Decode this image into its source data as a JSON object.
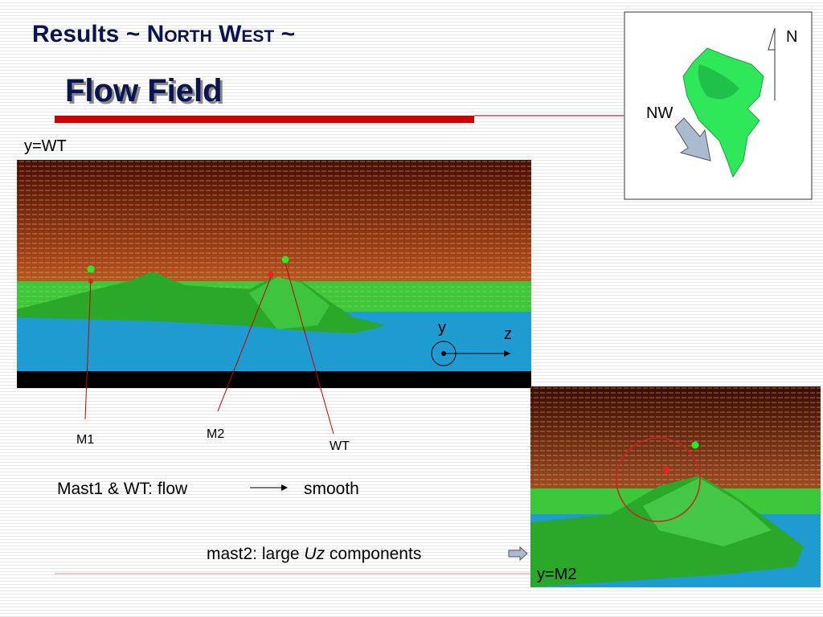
{
  "header": {
    "title_start": "Results ~",
    "title_north": "North",
    "title_west": "West",
    "title_end": "~",
    "subtitle": "Flow Field"
  },
  "top_image": {
    "label": "y=WT",
    "axis_y": "y",
    "axis_z": "z"
  },
  "map": {
    "north": "N",
    "direction": "NW"
  },
  "masts": {
    "m1": "M1",
    "m2": "M2",
    "wt": "WT"
  },
  "notes": {
    "line1_start": "Mast1 & WT: flow",
    "line1_end": "smooth",
    "line2_start": "mast2: large",
    "line2_italic": "Uz",
    "line2_end": "components"
  },
  "bottom_image": {
    "label": "y=M2"
  }
}
